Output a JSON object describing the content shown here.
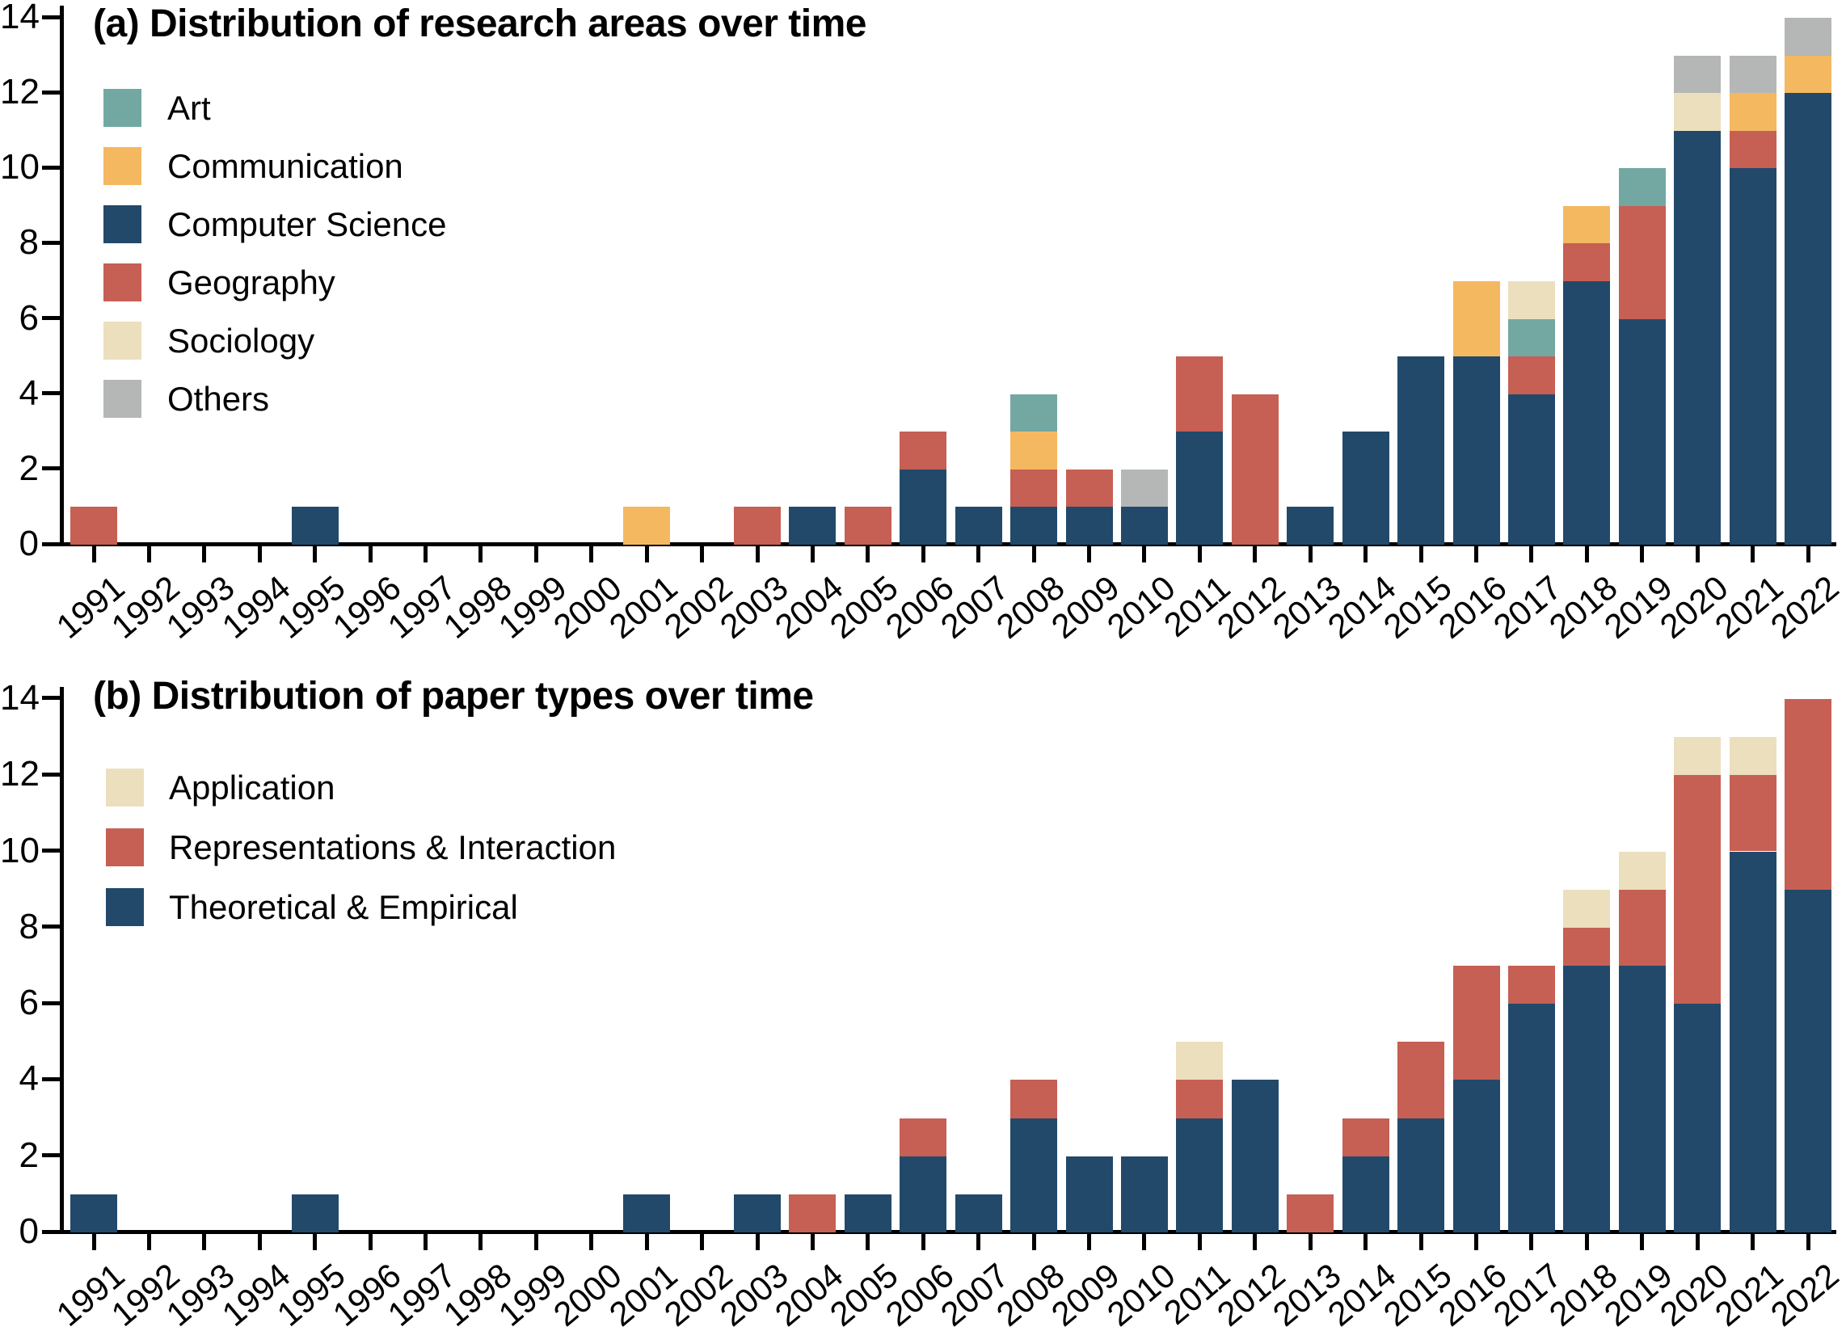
{
  "figure": {
    "background": "#ffffff",
    "text_color": "#000000",
    "axis_color": "#000000"
  },
  "chart_data": [
    {
      "type": "bar",
      "stacked": true,
      "panel": "a",
      "title": "(a) Distribution of research areas over time",
      "xlabel": "",
      "ylabel": "",
      "ylim": [
        0,
        14
      ],
      "yticks": [
        0,
        2,
        4,
        6,
        8,
        10,
        12,
        14
      ],
      "grid": false,
      "legend_position": "upper-left-inside",
      "categories": [
        "1991",
        "1992",
        "1993",
        "1994",
        "1995",
        "1996",
        "1997",
        "1998",
        "1999",
        "2000",
        "2001",
        "2002",
        "2003",
        "2004",
        "2005",
        "2006",
        "2007",
        "2008",
        "2009",
        "2010",
        "2011",
        "2012",
        "2013",
        "2014",
        "2015",
        "2016",
        "2017",
        "2018",
        "2019",
        "2020",
        "2021",
        "2022"
      ],
      "series": [
        {
          "name": "Computer Science",
          "color": "#22496a",
          "values": [
            0,
            0,
            0,
            0,
            1,
            0,
            0,
            0,
            0,
            0,
            0,
            0,
            0,
            1,
            0,
            2,
            1,
            1,
            1,
            1,
            3,
            0,
            1,
            3,
            5,
            5,
            4,
            7,
            6,
            11,
            10,
            12
          ]
        },
        {
          "name": "Geography",
          "color": "#c65f54",
          "values": [
            1,
            0,
            0,
            0,
            0,
            0,
            0,
            0,
            0,
            0,
            0,
            0,
            1,
            0,
            1,
            1,
            0,
            1,
            1,
            0,
            2,
            4,
            0,
            0,
            0,
            0,
            1,
            1,
            3,
            0,
            1,
            0
          ]
        },
        {
          "name": "Communication",
          "color": "#f4b861",
          "values": [
            0,
            0,
            0,
            0,
            0,
            0,
            0,
            0,
            0,
            0,
            1,
            0,
            0,
            0,
            0,
            0,
            0,
            1,
            0,
            0,
            0,
            0,
            0,
            0,
            0,
            2,
            0,
            1,
            0,
            0,
            1,
            1
          ]
        },
        {
          "name": "Art",
          "color": "#73a8a2",
          "values": [
            0,
            0,
            0,
            0,
            0,
            0,
            0,
            0,
            0,
            0,
            0,
            0,
            0,
            0,
            0,
            0,
            0,
            1,
            0,
            0,
            0,
            0,
            0,
            0,
            0,
            0,
            1,
            0,
            1,
            0,
            0,
            0
          ]
        },
        {
          "name": "Sociology",
          "color": "#ecdfbd",
          "values": [
            0,
            0,
            0,
            0,
            0,
            0,
            0,
            0,
            0,
            0,
            0,
            0,
            0,
            0,
            0,
            0,
            0,
            0,
            0,
            0,
            0,
            0,
            0,
            0,
            0,
            0,
            1,
            0,
            0,
            1,
            0,
            0
          ]
        },
        {
          "name": "Others",
          "color": "#b5b6b6",
          "values": [
            0,
            0,
            0,
            0,
            0,
            0,
            0,
            0,
            0,
            0,
            0,
            0,
            0,
            0,
            0,
            0,
            0,
            0,
            0,
            1,
            0,
            0,
            0,
            0,
            0,
            0,
            0,
            0,
            0,
            1,
            1,
            1
          ]
        }
      ],
      "legend": [
        {
          "label": "Art",
          "color": "#73a8a2"
        },
        {
          "label": "Communication",
          "color": "#f4b861"
        },
        {
          "label": "Computer Science",
          "color": "#22496a"
        },
        {
          "label": "Geography",
          "color": "#c65f54"
        },
        {
          "label": "Sociology",
          "color": "#ecdfbd"
        },
        {
          "label": "Others",
          "color": "#b5b6b6"
        }
      ]
    },
    {
      "type": "bar",
      "stacked": true,
      "panel": "b",
      "title": "(b) Distribution of paper types over time",
      "xlabel": "",
      "ylabel": "",
      "ylim": [
        0,
        14
      ],
      "yticks": [
        0,
        2,
        4,
        6,
        8,
        10,
        12,
        14
      ],
      "grid": false,
      "legend_position": "upper-left-inside",
      "categories": [
        "1991",
        "1992",
        "1993",
        "1994",
        "1995",
        "1996",
        "1997",
        "1998",
        "1999",
        "2000",
        "2001",
        "2002",
        "2003",
        "2004",
        "2005",
        "2006",
        "2007",
        "2008",
        "2009",
        "2010",
        "2011",
        "2012",
        "2013",
        "2014",
        "2015",
        "2016",
        "2017",
        "2018",
        "2019",
        "2020",
        "2021",
        "2022"
      ],
      "series": [
        {
          "name": "Theoretical & Empirical",
          "color": "#22496a",
          "values": [
            1,
            0,
            0,
            0,
            1,
            0,
            0,
            0,
            0,
            0,
            1,
            0,
            1,
            0,
            1,
            2,
            1,
            3,
            2,
            2,
            3,
            4,
            0,
            2,
            3,
            4,
            6,
            7,
            7,
            6,
            10,
            9
          ]
        },
        {
          "name": "Representations & Interaction",
          "color": "#c65f54",
          "values": [
            0,
            0,
            0,
            0,
            0,
            0,
            0,
            0,
            0,
            0,
            0,
            0,
            0,
            1,
            0,
            1,
            0,
            1,
            0,
            0,
            1,
            0,
            1,
            1,
            2,
            3,
            1,
            1,
            2,
            6,
            2,
            5
          ]
        },
        {
          "name": "Application",
          "color": "#ecdfbd",
          "values": [
            0,
            0,
            0,
            0,
            0,
            0,
            0,
            0,
            0,
            0,
            0,
            0,
            0,
            0,
            0,
            0,
            0,
            0,
            0,
            0,
            1,
            0,
            0,
            0,
            0,
            0,
            0,
            1,
            1,
            1,
            1,
            0
          ]
        }
      ],
      "legend": [
        {
          "label": "Application",
          "color": "#ecdfbd"
        },
        {
          "label": "Representations & Interaction",
          "color": "#c65f54"
        },
        {
          "label": "Theoretical & Empirical",
          "color": "#22496a"
        }
      ]
    }
  ]
}
